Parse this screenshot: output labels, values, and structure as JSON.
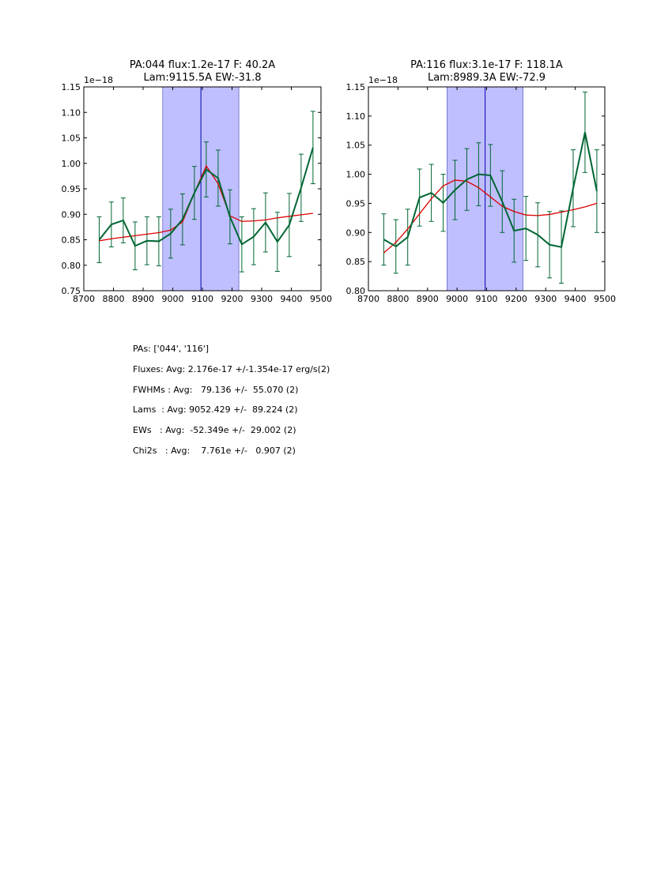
{
  "chart_data": [
    {
      "type": "line",
      "title": "PA:044 flux:1.2e-17 F: 40.2A\nLam:9115.5A EW:-31.8",
      "title_lines": [
        "PA:044 flux:1.2e-17 F: 40.2A",
        "Lam:9115.5A EW:-31.8"
      ],
      "offset_label": "1e−18",
      "xlim": [
        8700,
        9500
      ],
      "ylim": [
        0.75,
        1.15
      ],
      "xticks": [
        8700,
        8800,
        8900,
        9000,
        9100,
        9200,
        9300,
        9400,
        9500
      ],
      "xtick_labels": [
        "8700",
        "8800",
        "8900",
        "9000",
        "9100",
        "9200",
        "9300",
        "9400",
        "9500"
      ],
      "yticks": [
        0.75,
        0.8,
        0.85,
        0.9,
        0.95,
        1.0,
        1.05,
        1.1,
        1.15
      ],
      "ytick_labels": [
        "0.75",
        "0.80",
        "0.85",
        "0.90",
        "0.95",
        "1.00",
        "1.05",
        "1.10",
        "1.15"
      ],
      "shaded_region": [
        8966,
        9223
      ],
      "center_line": 9095,
      "series": [
        {
          "name": "data",
          "color": "#006633",
          "x": [
            8752,
            8793,
            8833,
            8873,
            8913,
            8953,
            8993,
            9033,
            9073,
            9113,
            9153,
            9193,
            9233,
            9273,
            9313,
            9353,
            9393,
            9433,
            9473
          ],
          "y": [
            0.85,
            0.88,
            0.888,
            0.838,
            0.848,
            0.847,
            0.862,
            0.89,
            0.942,
            0.988,
            0.971,
            0.895,
            0.841,
            0.856,
            0.884,
            0.846,
            0.879,
            0.952,
            1.031
          ],
          "err": [
            0.045,
            0.044,
            0.044,
            0.047,
            0.047,
            0.048,
            0.048,
            0.05,
            0.052,
            0.054,
            0.055,
            0.053,
            0.054,
            0.055,
            0.058,
            0.058,
            0.062,
            0.066,
            0.071
          ]
        },
        {
          "name": "fit",
          "color": "#dd0000",
          "x": [
            8752,
            8793,
            8833,
            8873,
            8913,
            8953,
            8993,
            9033,
            9073,
            9113,
            9153,
            9193,
            9233,
            9273,
            9313,
            9353,
            9393,
            9433,
            9473
          ],
          "y": [
            0.848,
            0.852,
            0.855,
            0.858,
            0.861,
            0.864,
            0.869,
            0.885,
            0.942,
            0.995,
            0.96,
            0.897,
            0.886,
            0.887,
            0.889,
            0.893,
            0.896,
            0.899,
            0.902
          ]
        }
      ]
    },
    {
      "type": "line",
      "title": "PA:116 flux:3.1e-17 F: 118.1A\nLam:8989.3A EW:-72.9",
      "title_lines": [
        "PA:116 flux:3.1e-17 F: 118.1A",
        "Lam:8989.3A EW:-72.9"
      ],
      "offset_label": "1e−18",
      "xlim": [
        8700,
        9500
      ],
      "ylim": [
        0.8,
        1.15
      ],
      "xticks": [
        8700,
        8800,
        8900,
        9000,
        9100,
        9200,
        9300,
        9400,
        9500
      ],
      "xtick_labels": [
        "8700",
        "8800",
        "8900",
        "9000",
        "9100",
        "9200",
        "9300",
        "9400",
        "9500"
      ],
      "yticks": [
        0.8,
        0.85,
        0.9,
        0.95,
        1.0,
        1.05,
        1.1,
        1.15
      ],
      "ytick_labels": [
        "0.80",
        "0.85",
        "0.90",
        "0.95",
        "1.00",
        "1.05",
        "1.10",
        "1.15"
      ],
      "shaded_region": [
        8966,
        9223
      ],
      "center_line": 9095,
      "series": [
        {
          "name": "data",
          "color": "#006633",
          "x": [
            8752,
            8793,
            8833,
            8873,
            8913,
            8953,
            8993,
            9033,
            9073,
            9113,
            9153,
            9193,
            9233,
            9273,
            9313,
            9353,
            9393,
            9433,
            9473
          ],
          "y": [
            0.888,
            0.876,
            0.892,
            0.96,
            0.968,
            0.951,
            0.973,
            0.991,
            1.0,
            0.998,
            0.953,
            0.903,
            0.907,
            0.896,
            0.879,
            0.875,
            0.976,
            1.072,
            0.971
          ],
          "err": [
            0.044,
            0.046,
            0.048,
            0.049,
            0.049,
            0.049,
            0.051,
            0.053,
            0.054,
            0.053,
            0.053,
            0.054,
            0.055,
            0.055,
            0.057,
            0.062,
            0.066,
            0.069,
            0.071
          ]
        },
        {
          "name": "fit",
          "color": "#dd0000",
          "x": [
            8752,
            8793,
            8833,
            8873,
            8913,
            8953,
            8993,
            9033,
            9073,
            9113,
            9153,
            9193,
            9233,
            9273,
            9313,
            9353,
            9393,
            9433,
            9473
          ],
          "y": [
            0.865,
            0.883,
            0.906,
            0.932,
            0.958,
            0.98,
            0.99,
            0.988,
            0.977,
            0.961,
            0.945,
            0.936,
            0.93,
            0.929,
            0.931,
            0.935,
            0.939,
            0.944,
            0.95
          ]
        }
      ]
    }
  ],
  "colors": {
    "shade": "#bfbfff",
    "shade_edge": "#6666cc",
    "center_line": "#0000aa",
    "data": "#006633",
    "fit": "#dd0000"
  },
  "stats": {
    "pas": "PAs: ['044', '116']",
    "fluxes": "Fluxes: Avg: 2.176e-17 +/-1.354e-17 erg/s(2)",
    "fwhms": "FWHMs : Avg:   79.136 +/-  55.070 (2)",
    "lams": "Lams  : Avg: 9052.429 +/-  89.224 (2)",
    "ews": "EWs   : Avg:  -52.349e +/-  29.002 (2)",
    "chi2s": "Chi2s   : Avg:    7.761e +/-   0.907 (2)"
  }
}
